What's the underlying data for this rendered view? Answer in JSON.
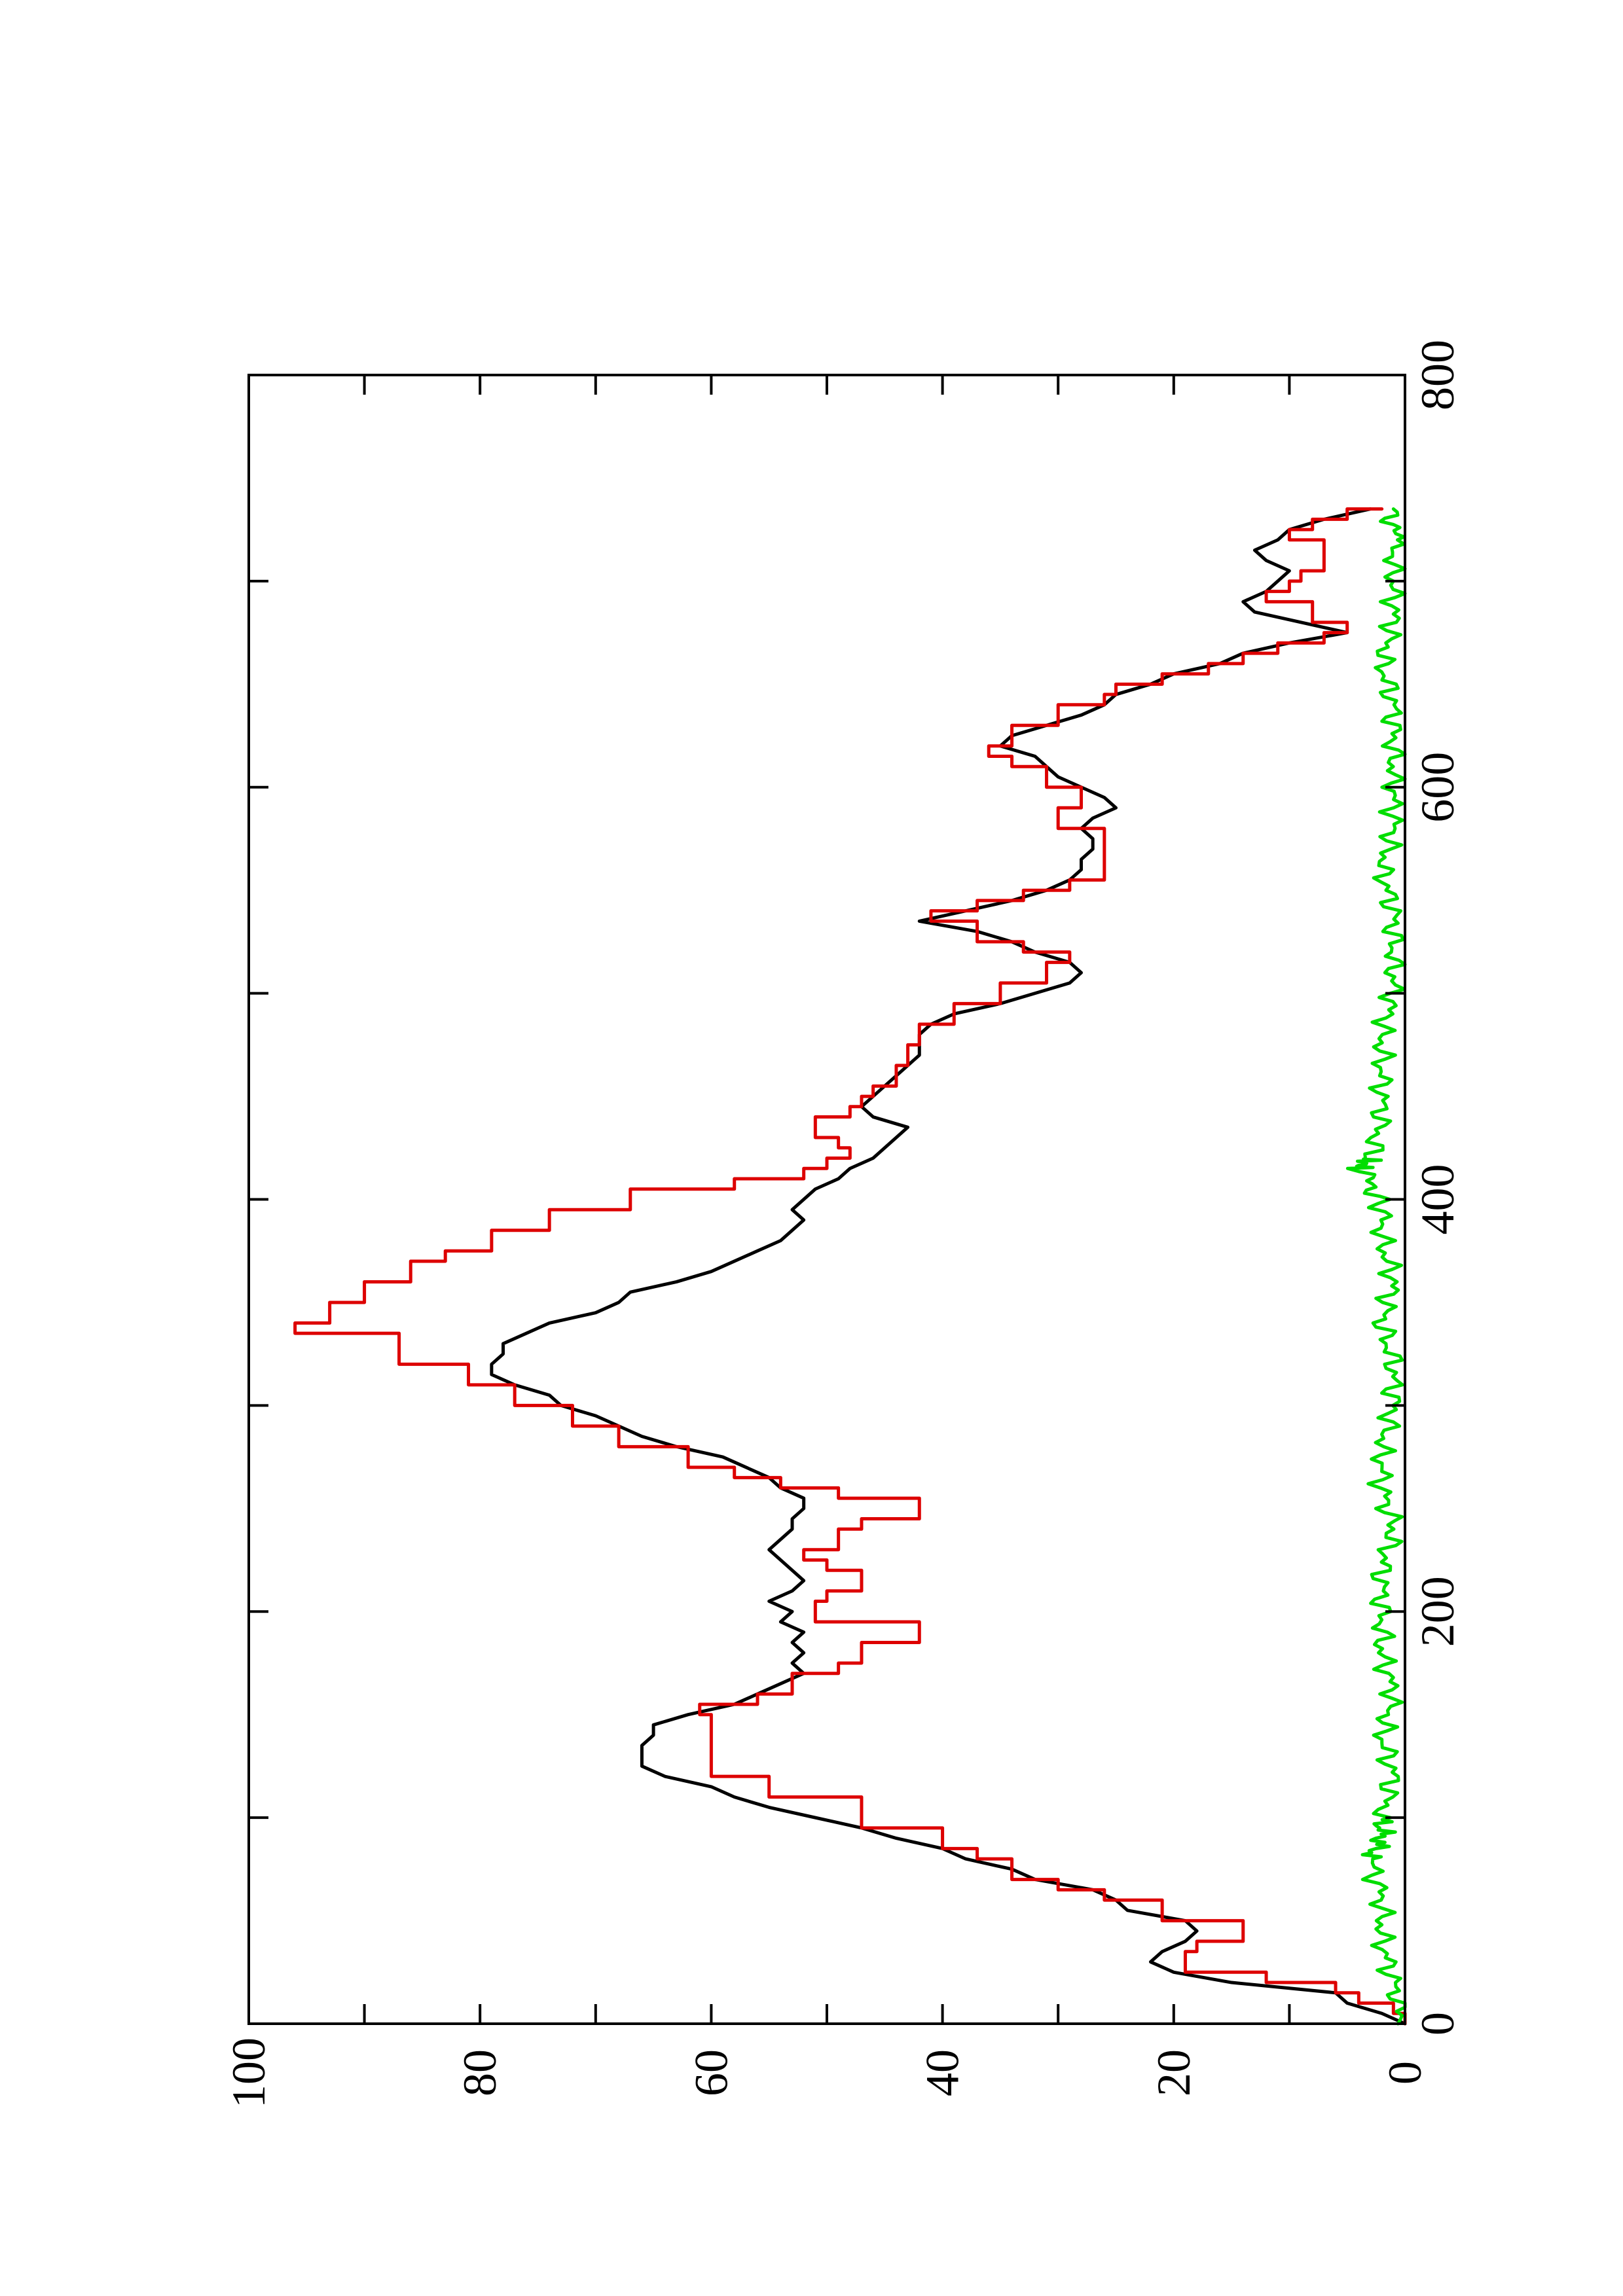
{
  "chart_data": {
    "type": "line",
    "title": "",
    "xlabel": "",
    "ylabel": "",
    "orientation": "rotated 90° counter-clockwise (landscape plot on portrait page)",
    "xlim": [
      0,
      800
    ],
    "ylim": [
      0,
      100
    ],
    "x_ticks": [
      "0",
      "200",
      "400",
      "600",
      "800"
    ],
    "y_ticks": [
      "0",
      "20",
      "40",
      "60",
      "80",
      "100"
    ],
    "grid": false,
    "legend": "none",
    "series": [
      {
        "color": "#000000",
        "style": "smooth",
        "points": [
          [
            0,
            0
          ],
          [
            5,
            2
          ],
          [
            10,
            5
          ],
          [
            15,
            6
          ],
          [
            20,
            15
          ],
          [
            25,
            20
          ],
          [
            30,
            22
          ],
          [
            35,
            21
          ],
          [
            40,
            19
          ],
          [
            45,
            18
          ],
          [
            50,
            19
          ],
          [
            55,
            24
          ],
          [
            60,
            25
          ],
          [
            65,
            27
          ],
          [
            70,
            32
          ],
          [
            75,
            34
          ],
          [
            80,
            38
          ],
          [
            85,
            40
          ],
          [
            90,
            44
          ],
          [
            95,
            47
          ],
          [
            100,
            51
          ],
          [
            105,
            55
          ],
          [
            110,
            58
          ],
          [
            115,
            60
          ],
          [
            120,
            64
          ],
          [
            125,
            66
          ],
          [
            130,
            66
          ],
          [
            135,
            66
          ],
          [
            140,
            65
          ],
          [
            145,
            65
          ],
          [
            150,
            62
          ],
          [
            155,
            58
          ],
          [
            160,
            56
          ],
          [
            165,
            54
          ],
          [
            170,
            52
          ],
          [
            175,
            53
          ],
          [
            180,
            52
          ],
          [
            185,
            53
          ],
          [
            190,
            52
          ],
          [
            195,
            54
          ],
          [
            200,
            53
          ],
          [
            205,
            55
          ],
          [
            210,
            53
          ],
          [
            215,
            52
          ],
          [
            220,
            53
          ],
          [
            225,
            54
          ],
          [
            230,
            55
          ],
          [
            235,
            54
          ],
          [
            240,
            53
          ],
          [
            245,
            53
          ],
          [
            250,
            52
          ],
          [
            255,
            52
          ],
          [
            260,
            54
          ],
          [
            265,
            55
          ],
          [
            270,
            57
          ],
          [
            275,
            59
          ],
          [
            280,
            63
          ],
          [
            285,
            66
          ],
          [
            290,
            68
          ],
          [
            295,
            70
          ],
          [
            300,
            73
          ],
          [
            305,
            74
          ],
          [
            310,
            77
          ],
          [
            315,
            79
          ],
          [
            320,
            79
          ],
          [
            325,
            78
          ],
          [
            330,
            78
          ],
          [
            335,
            76
          ],
          [
            340,
            74
          ],
          [
            345,
            70
          ],
          [
            350,
            68
          ],
          [
            355,
            67
          ],
          [
            360,
            63
          ],
          [
            365,
            60
          ],
          [
            370,
            58
          ],
          [
            375,
            56
          ],
          [
            380,
            54
          ],
          [
            385,
            53
          ],
          [
            390,
            52
          ],
          [
            395,
            53
          ],
          [
            400,
            52
          ],
          [
            405,
            51
          ],
          [
            410,
            49
          ],
          [
            415,
            48
          ],
          [
            420,
            46
          ],
          [
            425,
            45
          ],
          [
            430,
            44
          ],
          [
            435,
            43
          ],
          [
            440,
            46
          ],
          [
            445,
            47
          ],
          [
            450,
            46
          ],
          [
            455,
            45
          ],
          [
            460,
            44
          ],
          [
            465,
            43
          ],
          [
            470,
            42
          ],
          [
            475,
            42
          ],
          [
            480,
            42
          ],
          [
            485,
            41
          ],
          [
            490,
            39
          ],
          [
            495,
            35
          ],
          [
            500,
            32
          ],
          [
            505,
            29
          ],
          [
            510,
            28
          ],
          [
            515,
            29
          ],
          [
            520,
            32
          ],
          [
            525,
            34
          ],
          [
            530,
            37
          ],
          [
            535,
            42
          ],
          [
            540,
            38
          ],
          [
            545,
            34
          ],
          [
            550,
            31
          ],
          [
            555,
            29
          ],
          [
            560,
            28
          ],
          [
            565,
            28
          ],
          [
            570,
            27
          ],
          [
            575,
            27
          ],
          [
            580,
            28
          ],
          [
            585,
            27
          ],
          [
            590,
            25
          ],
          [
            595,
            26
          ],
          [
            600,
            28
          ],
          [
            605,
            30
          ],
          [
            610,
            31
          ],
          [
            615,
            32
          ],
          [
            620,
            35
          ],
          [
            625,
            34
          ],
          [
            630,
            31
          ],
          [
            635,
            28
          ],
          [
            640,
            26
          ],
          [
            645,
            25
          ],
          [
            650,
            22
          ],
          [
            655,
            20
          ],
          [
            660,
            16
          ],
          [
            665,
            14
          ],
          [
            670,
            10
          ],
          [
            675,
            5
          ],
          [
            680,
            9
          ],
          [
            685,
            13
          ],
          [
            690,
            14
          ],
          [
            695,
            12
          ],
          [
            700,
            11
          ],
          [
            705,
            10
          ],
          [
            710,
            12
          ],
          [
            715,
            13
          ],
          [
            720,
            11
          ],
          [
            725,
            10
          ],
          [
            730,
            7
          ],
          [
            735,
            3
          ]
        ]
      },
      {
        "color": "#dd0000",
        "style": "step",
        "points": [
          [
            0,
            0
          ],
          [
            5,
            1
          ],
          [
            10,
            4
          ],
          [
            15,
            6
          ],
          [
            20,
            12
          ],
          [
            25,
            19
          ],
          [
            35,
            18
          ],
          [
            40,
            14
          ],
          [
            50,
            21
          ],
          [
            60,
            26
          ],
          [
            65,
            30
          ],
          [
            70,
            34
          ],
          [
            80,
            37
          ],
          [
            85,
            40
          ],
          [
            95,
            47
          ],
          [
            110,
            55
          ],
          [
            120,
            60
          ],
          [
            150,
            61
          ],
          [
            155,
            56
          ],
          [
            160,
            53
          ],
          [
            170,
            49
          ],
          [
            175,
            47
          ],
          [
            185,
            42
          ],
          [
            195,
            51
          ],
          [
            205,
            50
          ],
          [
            210,
            47
          ],
          [
            220,
            50
          ],
          [
            225,
            52
          ],
          [
            230,
            49
          ],
          [
            240,
            47
          ],
          [
            245,
            42
          ],
          [
            255,
            49
          ],
          [
            260,
            54
          ],
          [
            265,
            58
          ],
          [
            270,
            62
          ],
          [
            280,
            68
          ],
          [
            290,
            72
          ],
          [
            300,
            77
          ],
          [
            310,
            81
          ],
          [
            320,
            87
          ],
          [
            335,
            96
          ],
          [
            340,
            93
          ],
          [
            350,
            90
          ],
          [
            360,
            86
          ],
          [
            370,
            83
          ],
          [
            375,
            79
          ],
          [
            385,
            74
          ],
          [
            395,
            67
          ],
          [
            405,
            58
          ],
          [
            410,
            52
          ],
          [
            415,
            50
          ],
          [
            420,
            48
          ],
          [
            425,
            49
          ],
          [
            430,
            51
          ],
          [
            435,
            51
          ],
          [
            440,
            48
          ],
          [
            445,
            47
          ],
          [
            450,
            46
          ],
          [
            455,
            44
          ],
          [
            465,
            43
          ],
          [
            475,
            42
          ],
          [
            485,
            39
          ],
          [
            495,
            35
          ],
          [
            505,
            31
          ],
          [
            515,
            29
          ],
          [
            520,
            33
          ],
          [
            525,
            37
          ],
          [
            535,
            41
          ],
          [
            540,
            37
          ],
          [
            545,
            33
          ],
          [
            550,
            29
          ],
          [
            555,
            26
          ],
          [
            575,
            26
          ],
          [
            580,
            30
          ],
          [
            590,
            28
          ],
          [
            600,
            31
          ],
          [
            610,
            34
          ],
          [
            615,
            36
          ],
          [
            620,
            34
          ],
          [
            630,
            30
          ],
          [
            640,
            26
          ],
          [
            645,
            25
          ],
          [
            650,
            21
          ],
          [
            655,
            17
          ],
          [
            660,
            14
          ],
          [
            665,
            11
          ],
          [
            670,
            7
          ],
          [
            675,
            5
          ],
          [
            680,
            8
          ],
          [
            690,
            12
          ],
          [
            695,
            10
          ],
          [
            700,
            9
          ],
          [
            705,
            7
          ],
          [
            715,
            7
          ],
          [
            720,
            10
          ],
          [
            725,
            8
          ],
          [
            730,
            5
          ],
          [
            735,
            2
          ]
        ]
      },
      {
        "color": "#00dd00",
        "style": "noise",
        "description": "fluctuating near zero (about 0–3), spike near x≈415",
        "points": [
          [
            0,
            0
          ],
          [
            20,
            1
          ],
          [
            40,
            2
          ],
          [
            60,
            2
          ],
          [
            80,
            3
          ],
          [
            90,
            2
          ],
          [
            100,
            2
          ],
          [
            120,
            1
          ],
          [
            140,
            2
          ],
          [
            160,
            1
          ],
          [
            180,
            2
          ],
          [
            200,
            2
          ],
          [
            220,
            2
          ],
          [
            240,
            1
          ],
          [
            260,
            2
          ],
          [
            280,
            2
          ],
          [
            300,
            1
          ],
          [
            320,
            1
          ],
          [
            340,
            2
          ],
          [
            360,
            1
          ],
          [
            380,
            2
          ],
          [
            400,
            2
          ],
          [
            415,
            4
          ],
          [
            420,
            3
          ],
          [
            440,
            2
          ],
          [
            460,
            2
          ],
          [
            480,
            2
          ],
          [
            500,
            1
          ],
          [
            520,
            1
          ],
          [
            540,
            1
          ],
          [
            560,
            2
          ],
          [
            580,
            1
          ],
          [
            600,
            1
          ],
          [
            620,
            1
          ],
          [
            640,
            1
          ],
          [
            660,
            2
          ],
          [
            680,
            1
          ],
          [
            700,
            1
          ],
          [
            720,
            1
          ],
          [
            735,
            1
          ]
        ]
      }
    ]
  }
}
